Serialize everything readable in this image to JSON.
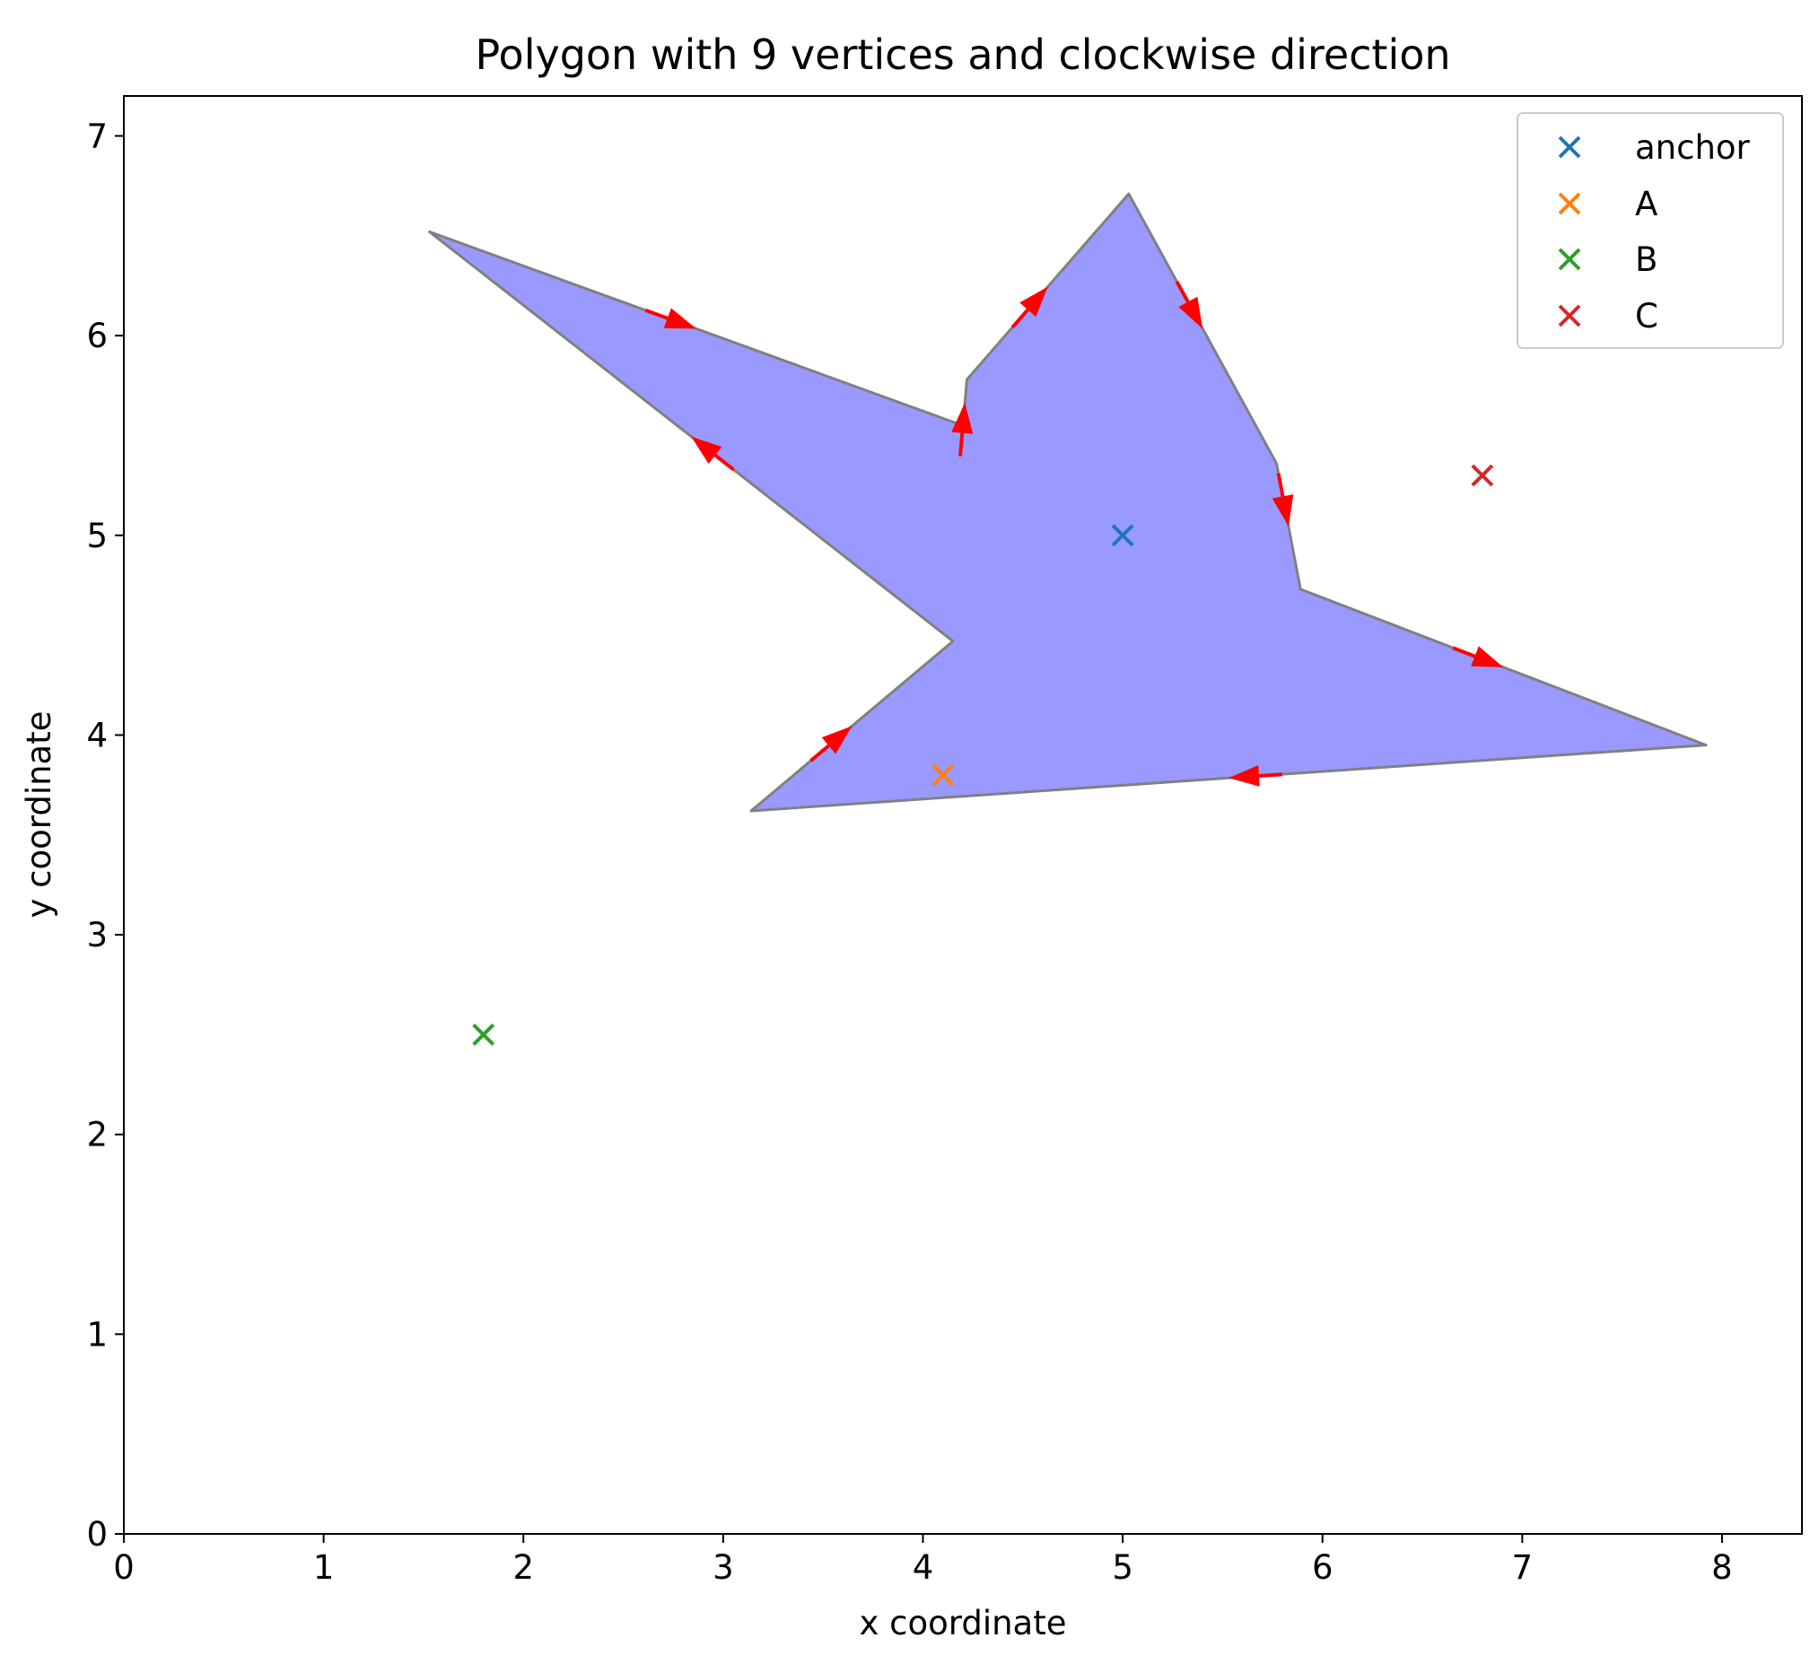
{
  "chart_data": {
    "type": "scatter",
    "title": "Polygon with 9 vertices and clockwise direction",
    "xlabel": "x coordinate",
    "ylabel": "y coordinate",
    "xlim": [
      0,
      8.4
    ],
    "ylim": [
      0,
      7.2
    ],
    "xticks": [
      0,
      1,
      2,
      3,
      4,
      5,
      6,
      7,
      8
    ],
    "yticks": [
      0,
      1,
      2,
      3,
      4,
      5,
      6,
      7
    ],
    "grid": false,
    "legend": "top-right",
    "polygon": {
      "direction": "clockwise",
      "fill_color": "#9999ff",
      "edge_color": "#808080",
      "arrow_color": "#ff0000",
      "vertices": [
        [
          1.53,
          6.52
        ],
        [
          4.2,
          5.55
        ],
        [
          4.22,
          5.78
        ],
        [
          5.03,
          6.71
        ],
        [
          5.77,
          5.36
        ],
        [
          5.89,
          4.73
        ],
        [
          7.92,
          3.95
        ],
        [
          3.14,
          3.62
        ],
        [
          4.15,
          4.47
        ]
      ]
    },
    "series": [
      {
        "name": "anchor",
        "color": "#1f77b4",
        "marker": "x",
        "x": [
          5.0
        ],
        "y": [
          5.0
        ]
      },
      {
        "name": "A",
        "color": "#ff7f0e",
        "marker": "x",
        "x": [
          4.1
        ],
        "y": [
          3.8
        ]
      },
      {
        "name": "B",
        "color": "#2ca02c",
        "marker": "x",
        "x": [
          1.8
        ],
        "y": [
          2.5
        ]
      },
      {
        "name": "C",
        "color": "#d62728",
        "marker": "x",
        "x": [
          6.8
        ],
        "y": [
          5.3
        ]
      }
    ]
  }
}
